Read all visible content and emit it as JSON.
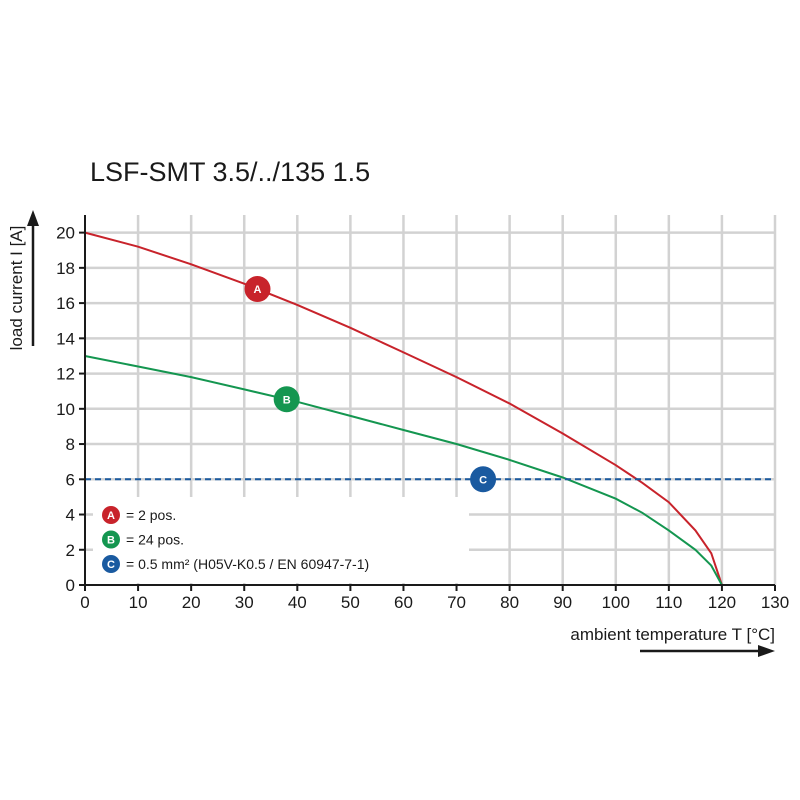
{
  "chart_data": {
    "type": "line",
    "title": "LSF-SMT 3.5/../135 1.5",
    "xlabel": "ambient temperature T [°C]",
    "ylabel": "load current I [A]",
    "xlim": [
      0,
      130
    ],
    "ylim": [
      0,
      21
    ],
    "xticks": [
      0,
      10,
      20,
      30,
      40,
      50,
      60,
      70,
      80,
      90,
      100,
      110,
      120,
      130
    ],
    "yticks": [
      0,
      2,
      4,
      6,
      8,
      10,
      12,
      14,
      16,
      18,
      20
    ],
    "grid": true,
    "legend_position": "bottom-left",
    "series": [
      {
        "name": "A",
        "legend_label": "= 2 pos.",
        "color": "#c8232b",
        "marker_x": 32.5,
        "x": [
          0,
          10,
          20,
          30,
          40,
          50,
          60,
          70,
          80,
          90,
          100,
          105,
          110,
          115,
          118,
          120
        ],
        "y": [
          20,
          19.2,
          18.2,
          17.1,
          15.9,
          14.6,
          13.2,
          11.8,
          10.3,
          8.6,
          6.8,
          5.8,
          4.7,
          3.1,
          1.8,
          0
        ]
      },
      {
        "name": "B",
        "legend_label": "= 24 pos.",
        "color": "#149650",
        "marker_x": 38,
        "x": [
          0,
          10,
          20,
          30,
          40,
          50,
          60,
          70,
          80,
          90,
          100,
          105,
          110,
          115,
          118,
          120
        ],
        "y": [
          13,
          12.4,
          11.8,
          11.1,
          10.4,
          9.6,
          8.8,
          8.0,
          7.1,
          6.1,
          4.9,
          4.1,
          3.1,
          2.0,
          1.1,
          0
        ]
      },
      {
        "name": "C",
        "legend_label": "= 0.5 mm² (H05V-K0.5 / EN 60947-7-1)",
        "color": "#1a5aa0",
        "style": "dashed",
        "marker_x": 75,
        "x": [
          0,
          130
        ],
        "y": [
          6,
          6
        ]
      }
    ]
  }
}
